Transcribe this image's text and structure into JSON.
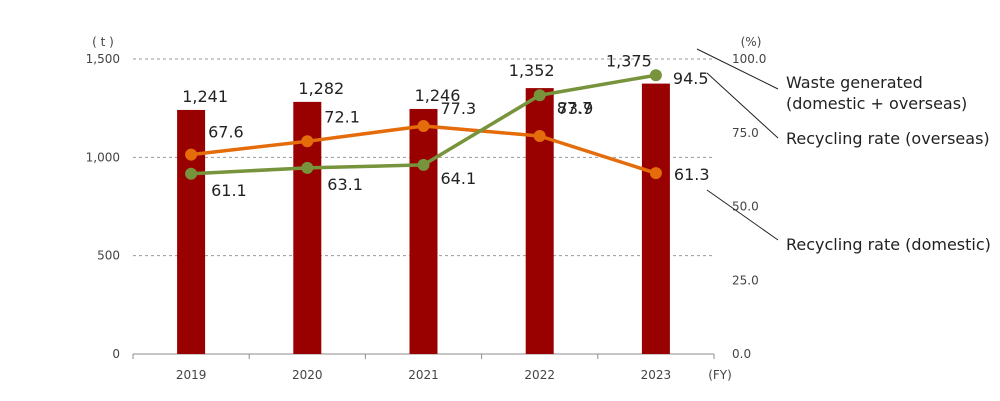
{
  "chart_data": {
    "type": "bar",
    "title": "",
    "xlabel": "(FY)",
    "ylabel": "( t )",
    "y2label": "(%)",
    "categories": [
      "2019",
      "2020",
      "2021",
      "2022",
      "2023"
    ],
    "ylim": [
      0,
      1500
    ],
    "y_ticks": [
      "0",
      "500",
      "1,000",
      "1,500"
    ],
    "y2lim": [
      0,
      100
    ],
    "y2_ticks": [
      "0.0",
      "25.0",
      "50.0",
      "75.0",
      "100.0"
    ],
    "grid": true,
    "series": [
      {
        "name": "Waste generated (domestic + overseas)",
        "legend_lines": [
          "Waste generated",
          "(domestic + overseas)"
        ],
        "type": "bar",
        "axis": "left",
        "color": "#990000",
        "values": [
          1241,
          1282,
          1246,
          1352,
          1375
        ],
        "labels": [
          "1,241",
          "1,282",
          "1,246",
          "1,352",
          "1,375"
        ]
      },
      {
        "name": "Recycling rate (domestic)",
        "legend_lines": [
          "Recycling rate (domestic)"
        ],
        "type": "line",
        "axis": "right",
        "color": "#E46C0A",
        "values": [
          67.6,
          72.1,
          77.3,
          73.9,
          61.3
        ],
        "labels": [
          "67.6",
          "72.1",
          "77.3",
          "73.9",
          "61.3"
        ]
      },
      {
        "name": "Recycling rate (overseas)",
        "legend_lines": [
          "Recycling rate (overseas)"
        ],
        "type": "line",
        "axis": "right",
        "color": "#77933C",
        "values": [
          61.1,
          63.1,
          64.1,
          87.7,
          94.5
        ],
        "labels": [
          "61.1",
          "63.1",
          "64.1",
          "87.7",
          "94.5"
        ]
      }
    ]
  }
}
